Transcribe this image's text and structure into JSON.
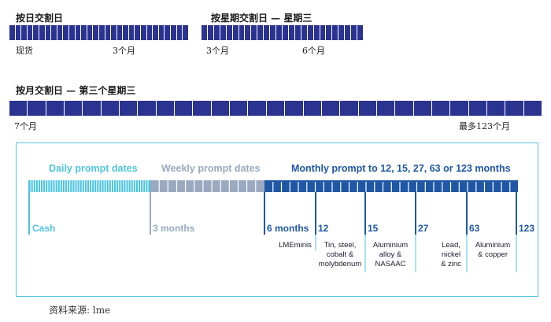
{
  "top_section": {
    "daily_header": "按日交割日",
    "weekly_header": "按星期交割日 — 星期三",
    "daily_labels": [
      "现货",
      "3个月"
    ],
    "weekly_labels": [
      "3个月",
      "6个月"
    ],
    "monthly_header": "按月交割日 — 第三个星期三",
    "monthly_labels": [
      "7个月",
      "最多123个月"
    ]
  },
  "diagram": {
    "categories": {
      "daily": "Daily prompt dates",
      "weekly": "Weekly prompt dates",
      "monthly": "Monthly prompt to 12, 15, 27, 63 or 123 months"
    },
    "ticks": [
      "Cash",
      "3 months",
      "6 months",
      "12",
      "15",
      "27",
      "63",
      "123"
    ],
    "metals": [
      "LMEminis",
      "Tin, steel,\ncobalt &\nmolybdenum",
      "Aluminium\nalloy &\nNASAAC",
      "Lead,\nnickel\n& zinc",
      "Aluminium\n& copper"
    ],
    "colors": {
      "daily": "#4fc4df",
      "weekly": "#9aa9bf",
      "monthly": "#1f57a4"
    }
  },
  "source": "资料来源: lme"
}
